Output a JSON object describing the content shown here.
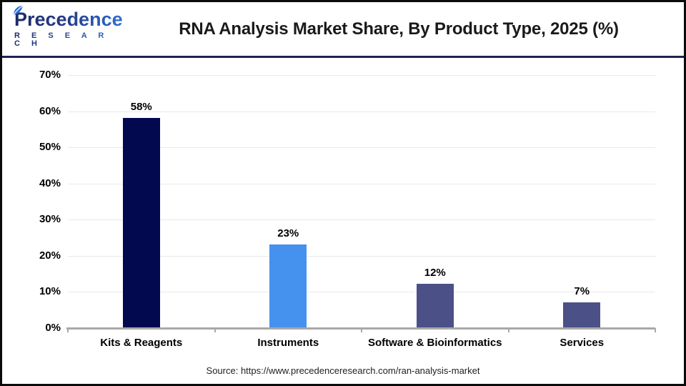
{
  "header": {
    "logo_brand": "Precedence",
    "logo_sub": "R E S E A R C H",
    "title": "RNA Analysis Market Share, By Product Type, 2025 (%)"
  },
  "chart_data": {
    "type": "bar",
    "title": "RNA Analysis Market Share, By Product Type, 2025 (%)",
    "categories": [
      "Kits & Reagents",
      "Instruments",
      "Software & Bioinformatics",
      "Services"
    ],
    "values": [
      58,
      23,
      12,
      7
    ],
    "value_labels": [
      "58%",
      "23%",
      "12%",
      "7%"
    ],
    "bar_colors": [
      "#02094f",
      "#4591ee",
      "#4b5187",
      "#4b5187"
    ],
    "xlabel": "",
    "ylabel": "",
    "ylim": [
      0,
      70
    ],
    "ytick_step": 10,
    "ytick_labels": [
      "0%",
      "10%",
      "20%",
      "30%",
      "40%",
      "50%",
      "60%",
      "70%"
    ],
    "grid": true,
    "legend": false
  },
  "footer": {
    "source": "Source: https://www.precedenceresearch.com/ran-analysis-market"
  },
  "colors": {
    "bar_kits": "#02094f",
    "bar_instruments": "#4591ee",
    "bar_software": "#4b5187",
    "bar_services": "#4b5187",
    "header_divider": "#1b2350",
    "gridline": "#e9e9e9",
    "axis": "#a9a9a9",
    "logo_navy": "#1d2a69",
    "logo_blue": "#2e6fd2"
  }
}
